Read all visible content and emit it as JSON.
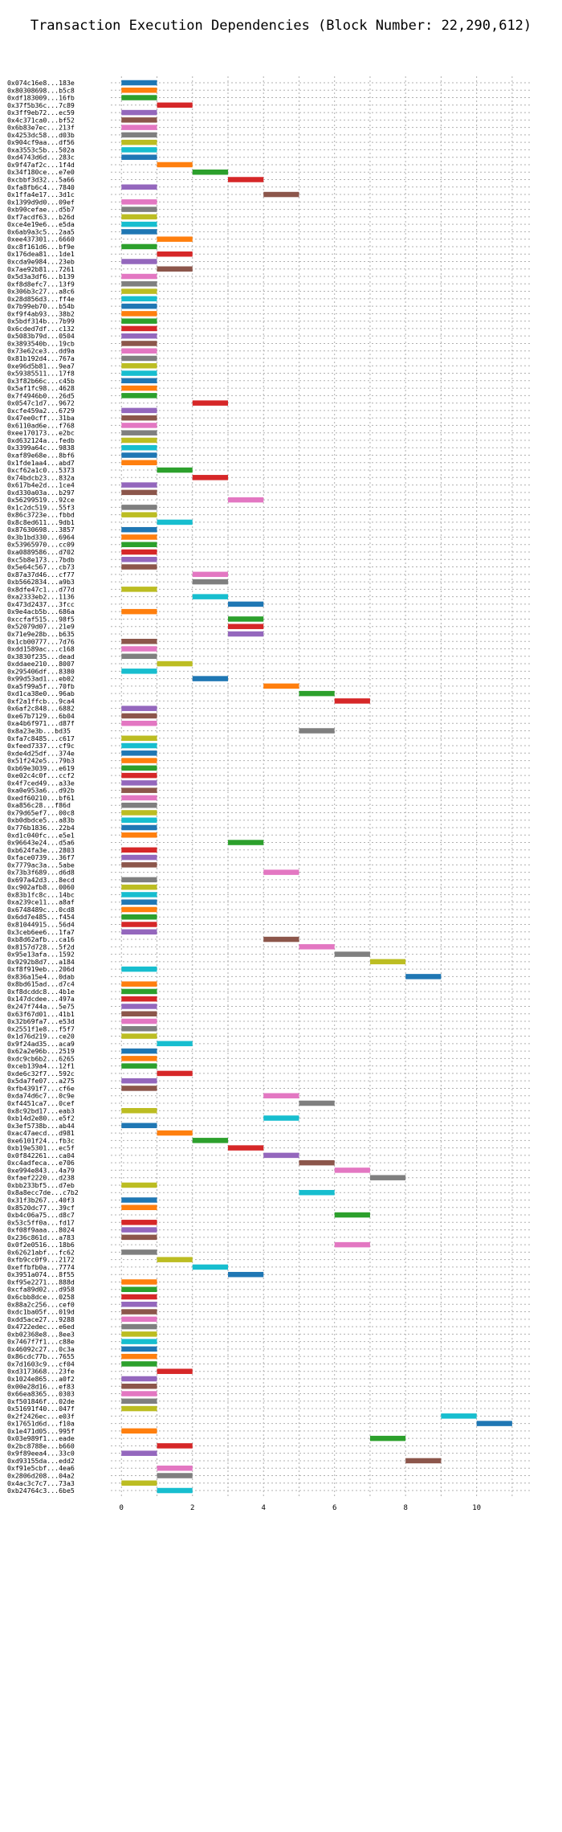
{
  "chart_data": {
    "type": "bar",
    "orientation": "horizontal",
    "title": "Transaction Execution Dependencies (Block Number: 22,290,612)",
    "xlabel": "",
    "ylabel": "",
    "xlim": [
      -0.3,
      11.5
    ],
    "xticks": [
      0,
      2,
      4,
      6,
      8,
      10
    ],
    "grid": true,
    "palette": [
      "#1f77b4",
      "#ff7f0e",
      "#2ca02c",
      "#d62728",
      "#9467bd",
      "#8c564b",
      "#e377c2",
      "#7f7f7f",
      "#bcbd22",
      "#17becf"
    ],
    "transactions": [
      {
        "hash": "0x074c16e8...183e",
        "start": 0
      },
      {
        "hash": "0x80308698...b5c8",
        "start": 0
      },
      {
        "hash": "0xdf183009...16fb",
        "start": 0
      },
      {
        "hash": "0x37f5b36c...7c89",
        "start": 1
      },
      {
        "hash": "0x3ff9eb72...ec59",
        "start": 0
      },
      {
        "hash": "0x4c371ca0...bf52",
        "start": 0
      },
      {
        "hash": "0x6b83e7ec...213f",
        "start": 0
      },
      {
        "hash": "0x4253dc58...d03b",
        "start": 0
      },
      {
        "hash": "0x904cf9aa...df56",
        "start": 0
      },
      {
        "hash": "0xa3553c5b...502a",
        "start": 0
      },
      {
        "hash": "0xd4743d6d...283c",
        "start": 0
      },
      {
        "hash": "0x9f47af2c...1f4d",
        "start": 1
      },
      {
        "hash": "0x34f180ce...e7e0",
        "start": 2
      },
      {
        "hash": "0xcbbf3d32...5a66",
        "start": 3
      },
      {
        "hash": "0xfa8fb6c4...7840",
        "start": 0
      },
      {
        "hash": "0x1ffa4e17...3d1c",
        "start": 4
      },
      {
        "hash": "0x1399d9d0...09ef",
        "start": 0
      },
      {
        "hash": "0xb90cefae...d5b7",
        "start": 0
      },
      {
        "hash": "0xf7acdf63...b26d",
        "start": 0
      },
      {
        "hash": "0xce4e19e6...e5da",
        "start": 0
      },
      {
        "hash": "0x6ab9a3c5...2aa5",
        "start": 0
      },
      {
        "hash": "0xee437301...6660",
        "start": 1
      },
      {
        "hash": "0xc8f161d6...bf9e",
        "start": 0
      },
      {
        "hash": "0x176dea81...1de1",
        "start": 1
      },
      {
        "hash": "0xcda9e984...23eb",
        "start": 0
      },
      {
        "hash": "0x7ae92b81...7261",
        "start": 1
      },
      {
        "hash": "0x5d3a3df6...b139",
        "start": 0
      },
      {
        "hash": "0xf8d8efc7...13f9",
        "start": 0
      },
      {
        "hash": "0x306b3c27...a8c6",
        "start": 0
      },
      {
        "hash": "0x28d856d3...ff4e",
        "start": 0
      },
      {
        "hash": "0x7b99eb70...b54b",
        "start": 0
      },
      {
        "hash": "0xf9f4ab93...38b2",
        "start": 0
      },
      {
        "hash": "0x5bdf314b...7b99",
        "start": 0
      },
      {
        "hash": "0x6cded7df...c132",
        "start": 0
      },
      {
        "hash": "0x5083b79d...0504",
        "start": 0
      },
      {
        "hash": "0x3893540b...19cb",
        "start": 0
      },
      {
        "hash": "0x73e62ce3...dd9a",
        "start": 0
      },
      {
        "hash": "0x81b192d4...767a",
        "start": 0
      },
      {
        "hash": "0xe96d5b81...9ea7",
        "start": 0
      },
      {
        "hash": "0x59385511...17f8",
        "start": 0
      },
      {
        "hash": "0x3f82b66c...c45b",
        "start": 0
      },
      {
        "hash": "0x5af1fc98...4628",
        "start": 0
      },
      {
        "hash": "0x7f4946b0...26d5",
        "start": 0
      },
      {
        "hash": "0x0547c1d7...9672",
        "start": 2
      },
      {
        "hash": "0xcfe459a2...6729",
        "start": 0
      },
      {
        "hash": "0x47ee0cff...31ba",
        "start": 0
      },
      {
        "hash": "0x6110ad6e...f768",
        "start": 0
      },
      {
        "hash": "0xee170173...e2bc",
        "start": 0
      },
      {
        "hash": "0xd632124a...fedb",
        "start": 0
      },
      {
        "hash": "0x3399a64c...9838",
        "start": 0
      },
      {
        "hash": "0xaf89e68e...8bf6",
        "start": 0
      },
      {
        "hash": "0x1fde1aa4...abd7",
        "start": 0
      },
      {
        "hash": "0xcf62a1c0...5373",
        "start": 1
      },
      {
        "hash": "0x74bdcb23...832a",
        "start": 2
      },
      {
        "hash": "0x617b4e2d...1ce4",
        "start": 0
      },
      {
        "hash": "0xd330a03a...b297",
        "start": 0
      },
      {
        "hash": "0x56299519...92ce",
        "start": 3
      },
      {
        "hash": "0x1c2dc519...55f3",
        "start": 0
      },
      {
        "hash": "0x86c3723e...fbbd",
        "start": 0
      },
      {
        "hash": "0x8c8ed611...9db1",
        "start": 1
      },
      {
        "hash": "0x87630698...3857",
        "start": 0
      },
      {
        "hash": "0x3b1bd330...6964",
        "start": 0
      },
      {
        "hash": "0x53965970...cc09",
        "start": 0
      },
      {
        "hash": "0xa0889586...d702",
        "start": 0
      },
      {
        "hash": "0xc5b8e173...7bdb",
        "start": 0
      },
      {
        "hash": "0x5e64c567...cb73",
        "start": 0
      },
      {
        "hash": "0x87a37d46...cf77",
        "start": 2
      },
      {
        "hash": "0xb5662834...a9b3",
        "start": 2
      },
      {
        "hash": "0x8dfe47c1...d77d",
        "start": 0
      },
      {
        "hash": "0xa2333eb2...1136",
        "start": 2
      },
      {
        "hash": "0x473d2437...3fcc",
        "start": 3
      },
      {
        "hash": "0x9e4acb5b...686a",
        "start": 0
      },
      {
        "hash": "0xccfaf515...98f5",
        "start": 3
      },
      {
        "hash": "0x52079d07...21e9",
        "start": 3
      },
      {
        "hash": "0x71e9e28b...b635",
        "start": 3
      },
      {
        "hash": "0x1cb00777...7d76",
        "start": 0
      },
      {
        "hash": "0xdd1589ac...c168",
        "start": 0
      },
      {
        "hash": "0x3830f235...dead",
        "start": 0
      },
      {
        "hash": "0xddaee210...8007",
        "start": 1
      },
      {
        "hash": "0x295406df...8380",
        "start": 0
      },
      {
        "hash": "0x99d53ad1...eb02",
        "start": 2
      },
      {
        "hash": "0xa5f99a5f...70fb",
        "start": 4
      },
      {
        "hash": "0xd1ca38e0...96ab",
        "start": 5
      },
      {
        "hash": "0xf2a1ffcb...9ca4",
        "start": 6
      },
      {
        "hash": "0x6af2c848...6882",
        "start": 0
      },
      {
        "hash": "0xe67b7129...6b04",
        "start": 0
      },
      {
        "hash": "0xa4b6f971...d87f",
        "start": 0
      },
      {
        "hash": "0x8a23e3b...bd35",
        "start": 5
      },
      {
        "hash": "0xfa7c8485...c617",
        "start": 0
      },
      {
        "hash": "0xfeed7337...cf9c",
        "start": 0
      },
      {
        "hash": "0xde4d25df...374e",
        "start": 0
      },
      {
        "hash": "0x51f242e5...79b3",
        "start": 0
      },
      {
        "hash": "0xb69e3039...e619",
        "start": 0
      },
      {
        "hash": "0xe02c4c0f...ccf2",
        "start": 0
      },
      {
        "hash": "0x4f7ced49...a33e",
        "start": 0
      },
      {
        "hash": "0xa0e953a6...d92b",
        "start": 0
      },
      {
        "hash": "0xedf60210...bf61",
        "start": 0
      },
      {
        "hash": "0xa856c28...f86d",
        "start": 0
      },
      {
        "hash": "0x79d65ef7...00c8",
        "start": 0
      },
      {
        "hash": "0xb0dbdce5...a83b",
        "start": 0
      },
      {
        "hash": "0x776b1836...22b4",
        "start": 0
      },
      {
        "hash": "0xd1c040fc...e5e1",
        "start": 0
      },
      {
        "hash": "0x96643e24...d5a6",
        "start": 3
      },
      {
        "hash": "0xb624fa3e...2803",
        "start": 0
      },
      {
        "hash": "0xface0739...36f7",
        "start": 0
      },
      {
        "hash": "0x7779ac3a...5abe",
        "start": 0
      },
      {
        "hash": "0x73b3f689...d6d8",
        "start": 4
      },
      {
        "hash": "0x697a42d3...8ecd",
        "start": 0
      },
      {
        "hash": "0xc902afb8...0060",
        "start": 0
      },
      {
        "hash": "0x83b1fc8c...14bc",
        "start": 0
      },
      {
        "hash": "0xa239ce11...a8af",
        "start": 0
      },
      {
        "hash": "0x6748489c...0cd8",
        "start": 0
      },
      {
        "hash": "0x6dd7e485...f454",
        "start": 0
      },
      {
        "hash": "0x81044915...56d4",
        "start": 0
      },
      {
        "hash": "0x3ceb6ee6...1fa7",
        "start": 0
      },
      {
        "hash": "0xb8d62afb...ca16",
        "start": 4
      },
      {
        "hash": "0x8157d728...5f2d",
        "start": 5
      },
      {
        "hash": "0x95e13afa...1592",
        "start": 6
      },
      {
        "hash": "0x9292b8d7...a184",
        "start": 7
      },
      {
        "hash": "0xf8f919eb...206d",
        "start": 0
      },
      {
        "hash": "0x836a15e4...0dab",
        "start": 8
      },
      {
        "hash": "0x8bd615ad...d7c4",
        "start": 0
      },
      {
        "hash": "0xf8dcddc8...4b1e",
        "start": 0
      },
      {
        "hash": "0x147dcdee...497a",
        "start": 0
      },
      {
        "hash": "0x247f744a...5e75",
        "start": 0
      },
      {
        "hash": "0x63f67d01...41b1",
        "start": 0
      },
      {
        "hash": "0x32b69fa7...e53d",
        "start": 0
      },
      {
        "hash": "0x2551f1e8...f5f7",
        "start": 0
      },
      {
        "hash": "0x1d76d219...ce20",
        "start": 0
      },
      {
        "hash": "0x9f24ad35...aca9",
        "start": 1
      },
      {
        "hash": "0x62a2e96b...2519",
        "start": 0
      },
      {
        "hash": "0xdc9cb6b2...6265",
        "start": 0
      },
      {
        "hash": "0xceb139a4...12f1",
        "start": 0
      },
      {
        "hash": "0xde6c32f7...592c",
        "start": 1
      },
      {
        "hash": "0x5da7fe07...a275",
        "start": 0
      },
      {
        "hash": "0xfb4391f7...cf6e",
        "start": 0
      },
      {
        "hash": "0xda74d6c7...0c9e",
        "start": 4
      },
      {
        "hash": "0xf4451ca7...0cef",
        "start": 5
      },
      {
        "hash": "0x8c92bd17...eab3",
        "start": 0
      },
      {
        "hash": "0xb14d2e80...e5f2",
        "start": 4
      },
      {
        "hash": "0x3ef5738b...ab44",
        "start": 0
      },
      {
        "hash": "0xac47aecd...d981",
        "start": 1
      },
      {
        "hash": "0xe6101f24...fb3c",
        "start": 2
      },
      {
        "hash": "0xb19e5301...ec5f",
        "start": 3
      },
      {
        "hash": "0x0f842261...ca04",
        "start": 4
      },
      {
        "hash": "0xc4adfeca...e706",
        "start": 5
      },
      {
        "hash": "0xe994e843...4a79",
        "start": 6
      },
      {
        "hash": "0xfaef2220...d238",
        "start": 7
      },
      {
        "hash": "0xbb233bf5...d7eb",
        "start": 0
      },
      {
        "hash": "0x8a8ecc7de...c7b2",
        "start": 5
      },
      {
        "hash": "0x31f3b267...40f3",
        "start": 0
      },
      {
        "hash": "0x8520dc77...39cf",
        "start": 0
      },
      {
        "hash": "0xb4c06a75...d8c7",
        "start": 6
      },
      {
        "hash": "0x53c5ff0a...fd17",
        "start": 0
      },
      {
        "hash": "0xf08f9aaa...8024",
        "start": 0
      },
      {
        "hash": "0x236c861d...a783",
        "start": 0
      },
      {
        "hash": "0x0f2e0516...18b6",
        "start": 6
      },
      {
        "hash": "0x62621abf...fc62",
        "start": 0
      },
      {
        "hash": "0xfb9cc0f9...2172",
        "start": 1
      },
      {
        "hash": "0xeffbfb0a...7774",
        "start": 2
      },
      {
        "hash": "0x3951a074...8f55",
        "start": 3
      },
      {
        "hash": "0xf95e2271...888d",
        "start": 0
      },
      {
        "hash": "0xcfa89d02...d958",
        "start": 0
      },
      {
        "hash": "0x6cbb8dce...0258",
        "start": 0
      },
      {
        "hash": "0x88a2c256...cef0",
        "start": 0
      },
      {
        "hash": "0xdc1ba05f...019d",
        "start": 0
      },
      {
        "hash": "0xdd5ace27...9288",
        "start": 0
      },
      {
        "hash": "0x4722edec...e6ed",
        "start": 0
      },
      {
        "hash": "0xb02368e8...8ee3",
        "start": 0
      },
      {
        "hash": "0x7467f7f1...c88e",
        "start": 0
      },
      {
        "hash": "0x46092c27...0c3a",
        "start": 0
      },
      {
        "hash": "0x86cdc77b...7655",
        "start": 0
      },
      {
        "hash": "0x7d1603c9...cf04",
        "start": 0
      },
      {
        "hash": "0xd3173668...23fe",
        "start": 1
      },
      {
        "hash": "0x1024e865...a0f2",
        "start": 0
      },
      {
        "hash": "0x00e28d16...ef83",
        "start": 0
      },
      {
        "hash": "0x66ea8365...0303",
        "start": 0
      },
      {
        "hash": "0xf501846f...02de",
        "start": 0
      },
      {
        "hash": "0x51691f40...047f",
        "start": 0
      },
      {
        "hash": "0x2f2426ec...e03f",
        "start": 9
      },
      {
        "hash": "0x17651d6d...f10a",
        "start": 10
      },
      {
        "hash": "0x1e471d05...995f",
        "start": 0
      },
      {
        "hash": "0x03e989f1...eade",
        "start": 7
      },
      {
        "hash": "0x2bc8788e...b660",
        "start": 1
      },
      {
        "hash": "0x9f89eea4...33c0",
        "start": 0
      },
      {
        "hash": "0xd93155da...edd2",
        "start": 8
      },
      {
        "hash": "0xf91e5cbf...4ea6",
        "start": 1
      },
      {
        "hash": "0x2806d208...04a2",
        "start": 1
      },
      {
        "hash": "0x4ac3c7c7...73a3",
        "start": 0
      },
      {
        "hash": "0xb24764c3...6be5",
        "start": 1
      }
    ]
  }
}
